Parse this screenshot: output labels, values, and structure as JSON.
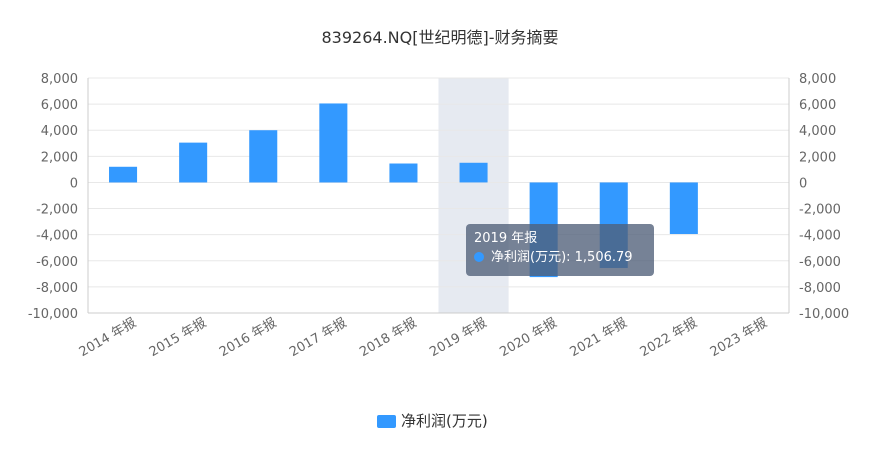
{
  "chart_data": {
    "type": "bar",
    "title": "839264.NQ[世纪明德]-财务摘要",
    "categories": [
      "2014 年报",
      "2015 年报",
      "2016 年报",
      "2017 年报",
      "2018 年报",
      "2019 年报",
      "2020 年报",
      "2021 年报",
      "2022 年报",
      "2023 年报"
    ],
    "series": [
      {
        "name": "净利润(万元)",
        "color": "#3399ff",
        "values": [
          1200,
          3050,
          4000,
          6050,
          1450,
          1506.79,
          -7250,
          -6550,
          -3950,
          null
        ]
      }
    ],
    "ylim": [
      -10000,
      8000
    ],
    "yticks": [
      "8,000",
      "6,000",
      "4,000",
      "2,000",
      "0",
      "-2,000",
      "-4,000",
      "-6,000",
      "-8,000",
      "-10,000"
    ],
    "y_axes": "left-and-right",
    "grid": true,
    "legend_position": "bottom",
    "highlighted_category": "2019 年报"
  },
  "tooltip": {
    "title": "2019 年报",
    "series_label": "净利润(万元): 1,506.79"
  }
}
